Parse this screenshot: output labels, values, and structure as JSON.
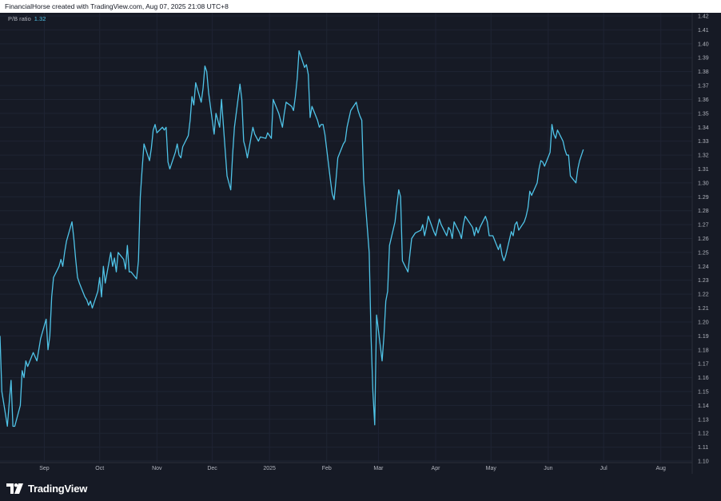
{
  "header": {
    "text": "FinancialHorse created with TradingView.com, Aug 07, 2025 21:08 UTC+8"
  },
  "legend": {
    "label": "P/B ratio",
    "value": "1.32"
  },
  "footer": {
    "brand": "TradingView",
    "logo_icon": "tradingview-logo-icon"
  },
  "colors": {
    "background": "#161a25",
    "line": "#4fc3e7",
    "grid": "#1f2433",
    "axis_text": "#b2b5be"
  },
  "chart_data": {
    "type": "line",
    "title": "",
    "xlabel": "",
    "ylabel": "",
    "ylim": [
      1.1,
      1.42
    ],
    "yticks": [
      "1.10",
      "1.11",
      "1.12",
      "1.13",
      "1.14",
      "1.15",
      "1.16",
      "1.17",
      "1.18",
      "1.19",
      "1.20",
      "1.21",
      "1.22",
      "1.23",
      "1.24",
      "1.25",
      "1.26",
      "1.27",
      "1.28",
      "1.29",
      "1.30",
      "1.31",
      "1.32",
      "1.33",
      "1.34",
      "1.35",
      "1.36",
      "1.37",
      "1.38",
      "1.39",
      "1.40",
      "1.41",
      "1.42"
    ],
    "x_start": "2024-08-08",
    "x_end": "2025-08-18",
    "xticks": [
      {
        "label": "Sep",
        "date": "2024-09-01"
      },
      {
        "label": "Oct",
        "date": "2024-10-01"
      },
      {
        "label": "Nov",
        "date": "2024-11-01"
      },
      {
        "label": "Dec",
        "date": "2024-12-01"
      },
      {
        "label": "2025",
        "date": "2025-01-01"
      },
      {
        "label": "Feb",
        "date": "2025-02-01"
      },
      {
        "label": "Mar",
        "date": "2025-03-01"
      },
      {
        "label": "Apr",
        "date": "2025-04-01"
      },
      {
        "label": "May",
        "date": "2025-05-01"
      },
      {
        "label": "Jun",
        "date": "2025-06-01"
      },
      {
        "label": "Jul",
        "date": "2025-07-01"
      },
      {
        "label": "Aug",
        "date": "2025-08-01"
      }
    ],
    "grid": true,
    "series": [
      {
        "name": "P/B ratio",
        "points": [
          [
            "2024-08-08",
            1.19
          ],
          [
            "2024-08-09",
            1.15
          ],
          [
            "2024-08-12",
            1.125
          ],
          [
            "2024-08-13",
            1.142
          ],
          [
            "2024-08-14",
            1.158
          ],
          [
            "2024-08-15",
            1.125
          ],
          [
            "2024-08-16",
            1.125
          ],
          [
            "2024-08-19",
            1.14
          ],
          [
            "2024-08-20",
            1.165
          ],
          [
            "2024-08-21",
            1.16
          ],
          [
            "2024-08-22",
            1.172
          ],
          [
            "2024-08-23",
            1.168
          ],
          [
            "2024-08-26",
            1.178
          ],
          [
            "2024-08-27",
            1.175
          ],
          [
            "2024-08-28",
            1.172
          ],
          [
            "2024-08-29",
            1.18
          ],
          [
            "2024-08-30",
            1.188
          ],
          [
            "2024-09-02",
            1.202
          ],
          [
            "2024-09-03",
            1.18
          ],
          [
            "2024-09-04",
            1.19
          ],
          [
            "2024-09-05",
            1.218
          ],
          [
            "2024-09-06",
            1.232
          ],
          [
            "2024-09-09",
            1.24
          ],
          [
            "2024-09-10",
            1.245
          ],
          [
            "2024-09-11",
            1.24
          ],
          [
            "2024-09-12",
            1.25
          ],
          [
            "2024-09-13",
            1.258
          ],
          [
            "2024-09-16",
            1.272
          ],
          [
            "2024-09-17",
            1.26
          ],
          [
            "2024-09-18",
            1.245
          ],
          [
            "2024-09-19",
            1.232
          ],
          [
            "2024-09-20",
            1.228
          ],
          [
            "2024-09-23",
            1.218
          ],
          [
            "2024-09-24",
            1.216
          ],
          [
            "2024-09-25",
            1.212
          ],
          [
            "2024-09-26",
            1.215
          ],
          [
            "2024-09-27",
            1.21
          ],
          [
            "2024-09-30",
            1.222
          ],
          [
            "2024-10-01",
            1.232
          ],
          [
            "2024-10-02",
            1.218
          ],
          [
            "2024-10-03",
            1.24
          ],
          [
            "2024-10-04",
            1.228
          ],
          [
            "2024-10-07",
            1.25
          ],
          [
            "2024-10-08",
            1.24
          ],
          [
            "2024-10-09",
            1.246
          ],
          [
            "2024-10-10",
            1.236
          ],
          [
            "2024-10-11",
            1.25
          ],
          [
            "2024-10-14",
            1.245
          ],
          [
            "2024-10-15",
            1.238
          ],
          [
            "2024-10-16",
            1.255
          ],
          [
            "2024-10-17",
            1.236
          ],
          [
            "2024-10-18",
            1.236
          ],
          [
            "2024-10-21",
            1.231
          ],
          [
            "2024-10-22",
            1.244
          ],
          [
            "2024-10-23",
            1.29
          ],
          [
            "2024-10-24",
            1.31
          ],
          [
            "2024-10-25",
            1.328
          ],
          [
            "2024-10-28",
            1.316
          ],
          [
            "2024-10-29",
            1.325
          ],
          [
            "2024-10-30",
            1.338
          ],
          [
            "2024-10-31",
            1.342
          ],
          [
            "2024-11-01",
            1.336
          ],
          [
            "2024-11-04",
            1.34
          ],
          [
            "2024-11-05",
            1.338
          ],
          [
            "2024-11-06",
            1.34
          ],
          [
            "2024-11-07",
            1.315
          ],
          [
            "2024-11-08",
            1.31
          ],
          [
            "2024-11-11",
            1.322
          ],
          [
            "2024-11-12",
            1.328
          ],
          [
            "2024-11-13",
            1.32
          ],
          [
            "2024-11-14",
            1.318
          ],
          [
            "2024-11-15",
            1.326
          ],
          [
            "2024-11-18",
            1.334
          ],
          [
            "2024-11-19",
            1.345
          ],
          [
            "2024-11-20",
            1.362
          ],
          [
            "2024-11-21",
            1.356
          ],
          [
            "2024-11-22",
            1.372
          ],
          [
            "2024-11-25",
            1.358
          ],
          [
            "2024-11-26",
            1.368
          ],
          [
            "2024-11-27",
            1.384
          ],
          [
            "2024-11-28",
            1.38
          ],
          [
            "2024-11-29",
            1.365
          ],
          [
            "2024-12-02",
            1.335
          ],
          [
            "2024-12-03",
            1.35
          ],
          [
            "2024-12-04",
            1.345
          ],
          [
            "2024-12-05",
            1.34
          ],
          [
            "2024-12-06",
            1.36
          ],
          [
            "2024-12-09",
            1.305
          ],
          [
            "2024-12-10",
            1.3
          ],
          [
            "2024-12-11",
            1.295
          ],
          [
            "2024-12-12",
            1.32
          ],
          [
            "2024-12-13",
            1.34
          ],
          [
            "2024-12-16",
            1.371
          ],
          [
            "2024-12-17",
            1.36
          ],
          [
            "2024-12-18",
            1.33
          ],
          [
            "2024-12-19",
            1.325
          ],
          [
            "2024-12-20",
            1.318
          ],
          [
            "2024-12-23",
            1.34
          ],
          [
            "2024-12-24",
            1.335
          ],
          [
            "2024-12-26",
            1.33
          ],
          [
            "2024-12-27",
            1.333
          ],
          [
            "2024-12-30",
            1.332
          ],
          [
            "2024-12-31",
            1.336
          ],
          [
            "2025-01-02",
            1.332
          ],
          [
            "2025-01-03",
            1.36
          ],
          [
            "2025-01-06",
            1.35
          ],
          [
            "2025-01-07",
            1.345
          ],
          [
            "2025-01-08",
            1.34
          ],
          [
            "2025-01-09",
            1.35
          ],
          [
            "2025-01-10",
            1.358
          ],
          [
            "2025-01-13",
            1.355
          ],
          [
            "2025-01-14",
            1.352
          ],
          [
            "2025-01-15",
            1.362
          ],
          [
            "2025-01-16",
            1.375
          ],
          [
            "2025-01-17",
            1.395
          ],
          [
            "2025-01-20",
            1.383
          ],
          [
            "2025-01-21",
            1.385
          ],
          [
            "2025-01-22",
            1.378
          ],
          [
            "2025-01-23",
            1.347
          ],
          [
            "2025-01-24",
            1.355
          ],
          [
            "2025-01-27",
            1.345
          ],
          [
            "2025-01-28",
            1.34
          ],
          [
            "2025-01-29",
            1.342
          ],
          [
            "2025-01-30",
            1.342
          ],
          [
            "2025-01-31",
            1.335
          ],
          [
            "2025-02-03",
            1.302
          ],
          [
            "2025-02-04",
            1.292
          ],
          [
            "2025-02-05",
            1.288
          ],
          [
            "2025-02-06",
            1.302
          ],
          [
            "2025-02-07",
            1.318
          ],
          [
            "2025-02-10",
            1.328
          ],
          [
            "2025-02-11",
            1.33
          ],
          [
            "2025-02-12",
            1.34
          ],
          [
            "2025-02-13",
            1.346
          ],
          [
            "2025-02-14",
            1.352
          ],
          [
            "2025-02-17",
            1.358
          ],
          [
            "2025-02-18",
            1.352
          ],
          [
            "2025-02-19",
            1.348
          ],
          [
            "2025-02-20",
            1.345
          ],
          [
            "2025-02-21",
            1.302
          ],
          [
            "2025-02-24",
            1.25
          ],
          [
            "2025-02-25",
            1.19
          ],
          [
            "2025-02-26",
            1.15
          ],
          [
            "2025-02-27",
            1.126
          ],
          [
            "2025-02-28",
            1.205
          ],
          [
            "2025-03-03",
            1.172
          ],
          [
            "2025-03-04",
            1.19
          ],
          [
            "2025-03-05",
            1.215
          ],
          [
            "2025-03-06",
            1.222
          ],
          [
            "2025-03-07",
            1.255
          ],
          [
            "2025-03-10",
            1.272
          ],
          [
            "2025-03-11",
            1.284
          ],
          [
            "2025-03-12",
            1.295
          ],
          [
            "2025-03-13",
            1.29
          ],
          [
            "2025-03-14",
            1.244
          ],
          [
            "2025-03-17",
            1.236
          ],
          [
            "2025-03-18",
            1.248
          ],
          [
            "2025-03-19",
            1.26
          ],
          [
            "2025-03-20",
            1.262
          ],
          [
            "2025-03-21",
            1.264
          ],
          [
            "2025-03-24",
            1.266
          ],
          [
            "2025-03-25",
            1.27
          ],
          [
            "2025-03-26",
            1.262
          ],
          [
            "2025-03-27",
            1.268
          ],
          [
            "2025-03-28",
            1.276
          ],
          [
            "2025-03-31",
            1.265
          ],
          [
            "2025-04-01",
            1.262
          ],
          [
            "2025-04-02",
            1.268
          ],
          [
            "2025-04-03",
            1.274
          ],
          [
            "2025-04-04",
            1.27
          ],
          [
            "2025-04-07",
            1.262
          ],
          [
            "2025-04-08",
            1.268
          ],
          [
            "2025-04-09",
            1.266
          ],
          [
            "2025-04-10",
            1.26
          ],
          [
            "2025-04-11",
            1.272
          ],
          [
            "2025-04-14",
            1.264
          ],
          [
            "2025-04-15",
            1.26
          ],
          [
            "2025-04-16",
            1.27
          ],
          [
            "2025-04-17",
            1.276
          ],
          [
            "2025-04-21",
            1.268
          ],
          [
            "2025-04-22",
            1.262
          ],
          [
            "2025-04-23",
            1.268
          ],
          [
            "2025-04-24",
            1.264
          ],
          [
            "2025-04-25",
            1.268
          ],
          [
            "2025-04-28",
            1.276
          ],
          [
            "2025-04-29",
            1.272
          ],
          [
            "2025-04-30",
            1.262
          ],
          [
            "2025-05-02",
            1.262
          ],
          [
            "2025-05-05",
            1.252
          ],
          [
            "2025-05-06",
            1.256
          ],
          [
            "2025-05-07",
            1.248
          ],
          [
            "2025-05-08",
            1.244
          ],
          [
            "2025-05-09",
            1.248
          ],
          [
            "2025-05-12",
            1.265
          ],
          [
            "2025-05-13",
            1.262
          ],
          [
            "2025-05-14",
            1.27
          ],
          [
            "2025-05-15",
            1.272
          ],
          [
            "2025-05-16",
            1.266
          ],
          [
            "2025-05-19",
            1.272
          ],
          [
            "2025-05-20",
            1.276
          ],
          [
            "2025-05-21",
            1.282
          ],
          [
            "2025-05-22",
            1.294
          ],
          [
            "2025-05-23",
            1.291
          ],
          [
            "2025-05-26",
            1.3
          ],
          [
            "2025-05-27",
            1.31
          ],
          [
            "2025-05-28",
            1.316
          ],
          [
            "2025-05-29",
            1.315
          ],
          [
            "2025-05-30",
            1.312
          ],
          [
            "2025-06-02",
            1.322
          ],
          [
            "2025-06-03",
            1.342
          ],
          [
            "2025-06-04",
            1.335
          ],
          [
            "2025-06-05",
            1.332
          ],
          [
            "2025-06-06",
            1.338
          ],
          [
            "2025-06-09",
            1.33
          ],
          [
            "2025-06-10",
            1.324
          ],
          [
            "2025-06-11",
            1.32
          ],
          [
            "2025-06-12",
            1.32
          ],
          [
            "2025-06-13",
            1.305
          ],
          [
            "2025-06-16",
            1.3
          ],
          [
            "2025-06-17",
            1.31
          ],
          [
            "2025-06-18",
            1.316
          ],
          [
            "2025-06-19",
            1.32
          ],
          [
            "2025-06-20",
            1.324
          ]
        ]
      }
    ]
  }
}
